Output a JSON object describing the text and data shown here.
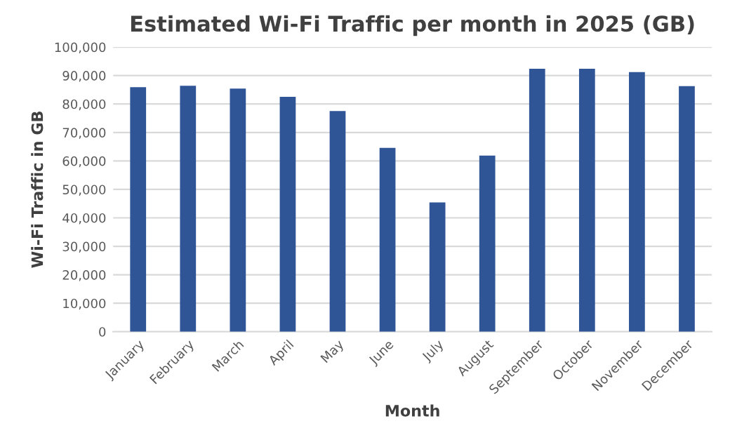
{
  "chart_data": {
    "type": "bar",
    "title": "Estimated Wi-Fi Traffic per month in 2025 (GB)",
    "xlabel": "Month",
    "ylabel": "Wi-Fi Traffic in GB",
    "categories": [
      "January",
      "February",
      "March",
      "April",
      "May",
      "June",
      "July",
      "August",
      "September",
      "October",
      "November",
      "December"
    ],
    "values": [
      85900,
      86400,
      85400,
      82500,
      77500,
      64600,
      45400,
      61900,
      92400,
      92400,
      91200,
      86300
    ],
    "color": "#2f5597",
    "ylim": [
      0,
      100000
    ],
    "yticks": [
      {
        "value": 0,
        "label": "0"
      },
      {
        "value": 10000,
        "label": "10,000"
      },
      {
        "value": 20000,
        "label": "20,000"
      },
      {
        "value": 30000,
        "label": "30,000"
      },
      {
        "value": 40000,
        "label": "40,000"
      },
      {
        "value": 50000,
        "label": "50,000"
      },
      {
        "value": 60000,
        "label": "60,000"
      },
      {
        "value": 70000,
        "label": "70,000"
      },
      {
        "value": 80000,
        "label": "80,000"
      },
      {
        "value": 90000,
        "label": "90,000"
      },
      {
        "value": 100000,
        "label": "100,000"
      }
    ],
    "grid": "y"
  }
}
